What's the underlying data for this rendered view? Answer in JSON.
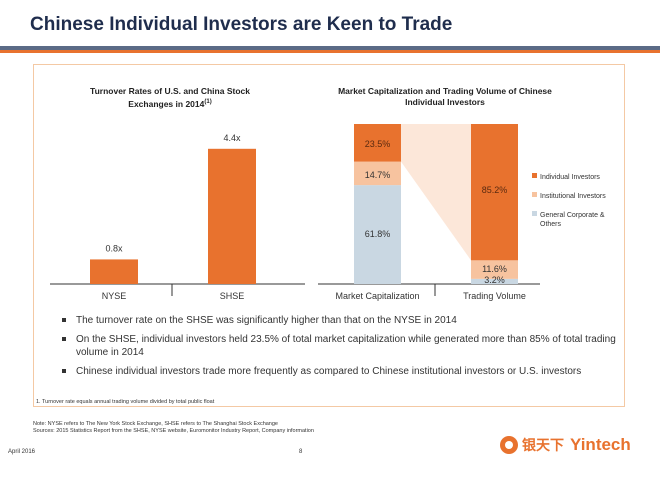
{
  "header": {
    "title": "Chinese Individual Investors are Keen to Trade"
  },
  "colors": {
    "orange": "#e8722e",
    "light_orange": "#f7c39f",
    "light_blue": "#c9d7e2",
    "navy": "#1f2d4d"
  },
  "chart_data": [
    {
      "type": "bar",
      "title": "Turnover Rates of U.S. and China Stock Exchanges in 2014",
      "title_footnote": "(1)",
      "categories": [
        "NYSE",
        "SHSE"
      ],
      "values": [
        0.8,
        4.4
      ],
      "data_labels": [
        "0.8x",
        "4.4x"
      ],
      "ylim": [
        0,
        5.5
      ],
      "grid": false,
      "color": "#e8722e"
    },
    {
      "type": "bar",
      "stacked": true,
      "percent": true,
      "title": "Market Capitalization and Trading Volume of Chinese Individual Investors",
      "categories": [
        "Market Capitalization",
        "Trading Volume"
      ],
      "series": [
        {
          "name": "General Corporate & Others",
          "values": [
            61.8,
            3.2
          ],
          "labels": [
            "61.8%",
            "3.2%"
          ],
          "color": "#c9d7e2"
        },
        {
          "name": "Institutional Investors",
          "values": [
            14.7,
            11.6
          ],
          "labels": [
            "14.7%",
            "11.6%"
          ],
          "color": "#f7c39f"
        },
        {
          "name": "Individual Investors",
          "values": [
            23.5,
            85.2
          ],
          "labels": [
            "23.5%",
            "85.2%"
          ],
          "color": "#e8722e"
        }
      ],
      "legend_order": [
        "Individual Investors",
        "Institutional Investors",
        "General Corporate & Others"
      ],
      "legend_position": "right",
      "ylim": [
        0,
        100
      ],
      "grid": false
    }
  ],
  "bullets": [
    "The turnover rate on the SHSE was significantly higher than that on the NYSE in 2014",
    "On the SHSE, individual investors held 23.5% of total market capitalization while generated more than 85% of total trading volume in 2014",
    "Chinese individual investors trade more frequently as compared to Chinese institutional investors or U.S. investors"
  ],
  "footnote": "1. Turnover rate equals annual trading volume divided by total public float",
  "note": "Note: NYSE refers to The New York Stock Exchange, SHSE refers to The Shanghai Stock Exchange",
  "sources": "Sources: 2015 Statistics Report from the SHSE, NYSE website, Euromonitor Industry Report, Company information",
  "footer": {
    "date": "April 2016",
    "page": "8"
  },
  "logo": {
    "cn": "银天下",
    "en": "Yintech"
  }
}
